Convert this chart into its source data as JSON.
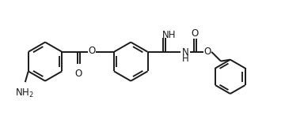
{
  "bg_color": "#ffffff",
  "line_color": "#1a1a1a",
  "lw": 1.4,
  "fontsize": 8.5,
  "fig_w": 3.6,
  "fig_h": 1.7,
  "dpi": 100,
  "xlim": [
    0,
    360
  ],
  "ylim": [
    0,
    170
  ]
}
